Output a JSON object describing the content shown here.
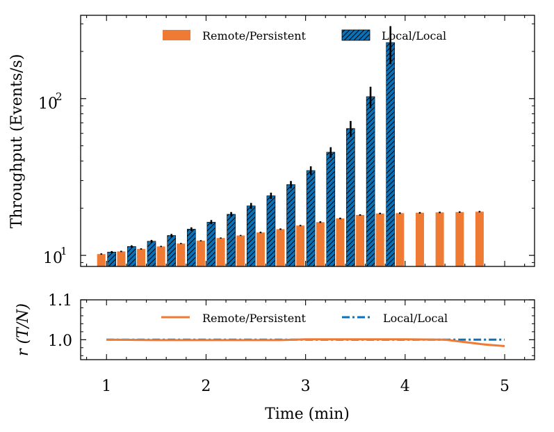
{
  "chart_data": [
    {
      "type": "bar",
      "scale": "log",
      "ylabel": "Throughput (Events/s)",
      "ytick_mantissa": "10",
      "yticks": [
        {
          "value": 10,
          "exp": "1"
        },
        {
          "value": 100,
          "exp": "2"
        }
      ],
      "ylim": [
        8.5,
        340
      ],
      "xlim": [
        0.74,
        5.3
      ],
      "legend_position": "top",
      "series": [
        {
          "name": "Remote/Persistent",
          "color": "#ef7a34",
          "hatch": false,
          "x": [
            1.0,
            1.2,
            1.4,
            1.6,
            1.8,
            2.0,
            2.2,
            2.4,
            2.6,
            2.8,
            3.0,
            3.2,
            3.4,
            3.6,
            3.8,
            4.0,
            4.2,
            4.4,
            4.6,
            4.8
          ],
          "values": [
            10.2,
            10.6,
            11.0,
            11.4,
            11.9,
            12.4,
            12.9,
            13.4,
            14.0,
            14.7,
            15.5,
            16.3,
            17.2,
            18.1,
            18.5,
            18.6,
            18.7,
            18.8,
            18.9,
            19.0
          ],
          "errors": [
            0.1,
            0.1,
            0.1,
            0.1,
            0.1,
            0.1,
            0.1,
            0.1,
            0.15,
            0.15,
            0.15,
            0.2,
            0.2,
            0.2,
            0.2,
            0.2,
            0.2,
            0.2,
            0.2,
            0.2
          ]
        },
        {
          "name": "Local/Local",
          "color": "#0a72b8",
          "hatch": true,
          "x": [
            1.0,
            1.2,
            1.4,
            1.6,
            1.8,
            2.0,
            2.2,
            2.4,
            2.6,
            2.8,
            3.0,
            3.2,
            3.4,
            3.6,
            3.8,
            4.0,
            4.2,
            4.4,
            4.6,
            4.8
          ],
          "values": [
            10.5,
            11.4,
            12.3,
            13.4,
            14.7,
            16.3,
            18.3,
            20.7,
            24.0,
            28.3,
            34.8,
            45.5,
            64.5,
            103,
            228,
            0,
            0,
            0,
            0,
            0
          ],
          "errors": [
            0.15,
            0.2,
            0.25,
            0.3,
            0.4,
            0.5,
            0.6,
            0.9,
            1.1,
            1.5,
            2.2,
            3.5,
            7.5,
            16,
            62,
            0,
            0,
            0,
            0,
            0
          ]
        }
      ]
    },
    {
      "type": "line",
      "ylabel_var": "r",
      "ylabel_rest": "(T/N)",
      "yticks": [
        "1.0",
        "1.1"
      ],
      "ytick_values": [
        1.0,
        1.1
      ],
      "ylim": [
        0.95,
        1.1
      ],
      "xlim": [
        0.74,
        5.3
      ],
      "xlabel": "Time (min)",
      "xticks": [
        "1",
        "2",
        "3",
        "4",
        "5"
      ],
      "xtick_values": [
        1,
        2,
        3,
        4,
        5
      ],
      "legend_position": "top",
      "series": [
        {
          "name": "Remote/Persistent",
          "color": "#ef7a34",
          "style": "solid",
          "x": [
            1.0,
            1.5,
            2.0,
            2.5,
            2.75,
            3.0,
            3.5,
            4.0,
            4.4,
            4.6,
            4.8,
            5.0
          ],
          "y": [
            1.0,
            0.999,
            0.999,
            0.999,
            0.999,
            1.001,
            1.001,
            1.001,
            1.0,
            0.994,
            0.988,
            0.984
          ]
        },
        {
          "name": "Local/Local",
          "color": "#0a72b8",
          "style": "dashdot",
          "x": [
            1.0,
            2.0,
            3.0,
            4.0,
            4.4,
            5.0
          ],
          "y": [
            1.0,
            1.0,
            1.0,
            1.0,
            1.0,
            1.0
          ]
        }
      ]
    }
  ]
}
